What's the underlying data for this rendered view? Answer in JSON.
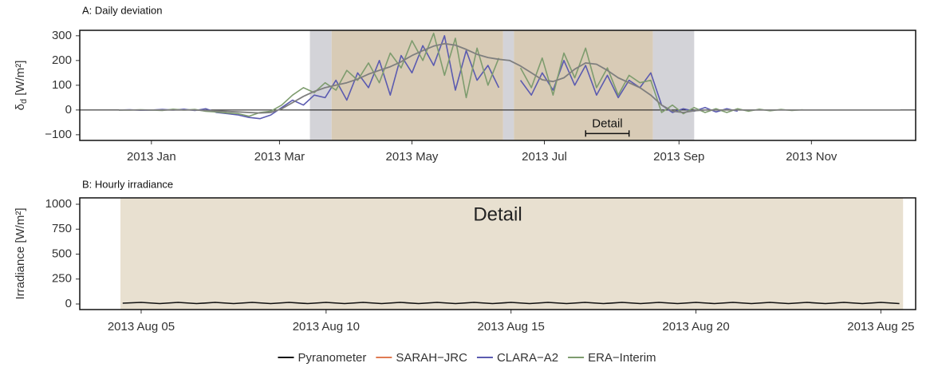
{
  "chart_data": [
    {
      "type": "line",
      "title": "A: Daily deviation",
      "y_label": {
        "symbol": "δ",
        "subscript": "d",
        "unit": " [W/m²]"
      },
      "xlim": [
        -33,
        352
      ],
      "ylim": [
        -123,
        322
      ],
      "xticks": [
        {
          "value": 0,
          "label": "2013 Jan"
        },
        {
          "value": 59,
          "label": "2013 Mar"
        },
        {
          "value": 120,
          "label": "2013 May"
        },
        {
          "value": 181,
          "label": "2013 Jul"
        },
        {
          "value": 243,
          "label": "2013 Sep"
        },
        {
          "value": 304,
          "label": "2013 Nov"
        }
      ],
      "yticks": [
        {
          "value": -100,
          "label": "−100"
        },
        0,
        100,
        200,
        300
      ],
      "reference_line": 0,
      "spans": [
        {
          "start": 73,
          "end": 83,
          "color": "#d3d3d8"
        },
        {
          "start": 83,
          "end": 162,
          "color": "#d8cbb6"
        },
        {
          "start": 162,
          "end": 167,
          "color": "#d3d3d8"
        },
        {
          "start": 167,
          "end": 231,
          "color": "#d8cbb6"
        },
        {
          "start": 231,
          "end": 250,
          "color": "#d3d3d8"
        }
      ],
      "bracket": {
        "label": "Detail",
        "start": 200,
        "end": 220,
        "y": -95
      },
      "x": [
        -15,
        -10,
        -5,
        0,
        5,
        10,
        15,
        20,
        25,
        30,
        35,
        40,
        45,
        50,
        55,
        60,
        65,
        70,
        75,
        80,
        85,
        90,
        95,
        100,
        105,
        110,
        115,
        120,
        125,
        130,
        135,
        140,
        145,
        150,
        155,
        160,
        165,
        170,
        175,
        180,
        185,
        190,
        195,
        200,
        205,
        210,
        215,
        220,
        225,
        230,
        235,
        240,
        245,
        250,
        255,
        260,
        265,
        270,
        275,
        280,
        285,
        290,
        295,
        300,
        305,
        310,
        315,
        320,
        325,
        330,
        335,
        340,
        345
      ],
      "series": [
        {
          "name": "CLARA−A2",
          "color": "#5b5bb0",
          "values": [
            0,
            1,
            -1,
            0,
            2,
            0,
            3,
            -2,
            5,
            -10,
            -15,
            -20,
            -30,
            -35,
            -20,
            10,
            40,
            20,
            60,
            50,
            120,
            40,
            150,
            90,
            200,
            60,
            220,
            150,
            260,
            180,
            300,
            80,
            240,
            120,
            180,
            90,
            null,
            120,
            60,
            150,
            80,
            200,
            100,
            180,
            60,
            140,
            50,
            120,
            90,
            150,
            20,
            -10,
            5,
            -5,
            10,
            -8,
            5,
            -5,
            null,
            null,
            null,
            null,
            null,
            null,
            null,
            null,
            null,
            null,
            null,
            null,
            null,
            null,
            null
          ]
        },
        {
          "name": "ERA−Interim",
          "color": "#7e9c6e",
          "values": [
            0,
            0,
            1,
            0,
            -2,
            3,
            0,
            2,
            -5,
            -8,
            -12,
            -15,
            -25,
            -10,
            -5,
            20,
            60,
            90,
            70,
            110,
            80,
            160,
            120,
            190,
            110,
            230,
            170,
            280,
            200,
            310,
            140,
            290,
            50,
            250,
            100,
            210,
            null,
            170,
            90,
            210,
            60,
            230,
            130,
            250,
            90,
            170,
            60,
            140,
            110,
            120,
            -10,
            20,
            -15,
            10,
            -10,
            5,
            -10,
            5,
            -5,
            3,
            -3,
            2,
            -2,
            1,
            null,
            null,
            null,
            null,
            null,
            null,
            null,
            null,
            null
          ]
        }
      ],
      "smooth": {
        "color": "#7f7f7f",
        "values": [
          0,
          0,
          0,
          0,
          0,
          0,
          0,
          0,
          -2,
          -4,
          -6,
          -8,
          -10,
          -12,
          -10,
          5,
          30,
          55,
          75,
          90,
          100,
          110,
          125,
          145,
          160,
          175,
          195,
          220,
          240,
          258,
          268,
          262,
          245,
          225,
          212,
          205,
          200,
          178,
          150,
          122,
          115,
          130,
          165,
          190,
          185,
          160,
          130,
          110,
          90,
          60,
          20,
          -5,
          -10,
          -3,
          0,
          0,
          0,
          0,
          0,
          0,
          0,
          0,
          0,
          0,
          0,
          0,
          0,
          0,
          0,
          0,
          0,
          0,
          0
        ]
      }
    },
    {
      "type": "line",
      "title": "B: Hourly irradiance",
      "y_label": "Irradiance [W/m²]",
      "annotation": "Detail",
      "xlim": [
        -1.66,
        20.94
      ],
      "ylim": [
        -56,
        1064
      ],
      "xticks": [
        {
          "value": 0,
          "label": "2013 Aug 05"
        },
        {
          "value": 5,
          "label": "2013 Aug 10"
        },
        {
          "value": 10,
          "label": "2013 Aug 15"
        },
        {
          "value": 15,
          "label": "2013 Aug 20"
        },
        {
          "value": 20,
          "label": "2013 Aug 25"
        }
      ],
      "yticks": [
        0,
        250,
        500,
        750,
        1000
      ],
      "spans": [
        {
          "start": -0.56,
          "end": 20.6,
          "color": "#e8e0d0"
        }
      ],
      "x": [
        -0.5,
        0,
        0.5,
        1,
        1.5,
        2,
        2.5,
        3,
        3.5,
        4,
        4.5,
        5,
        5.5,
        6,
        6.5,
        7,
        7.5,
        8,
        8.5,
        9,
        9.5,
        10,
        10.5,
        11,
        11.5,
        12,
        12.5,
        13,
        13.5,
        14,
        14.5,
        15,
        15.5,
        16,
        16.5,
        17,
        17.5,
        18,
        18.5,
        19,
        19.5,
        20,
        20.5
      ],
      "series": [
        {
          "name": "Pyranometer",
          "color": "#111111",
          "values": [
            8,
            16,
            4,
            16,
            4,
            16,
            4,
            16,
            4,
            16,
            4,
            16,
            4,
            16,
            4,
            16,
            4,
            16,
            4,
            16,
            4,
            16,
            4,
            16,
            4,
            16,
            4,
            16,
            4,
            16,
            4,
            16,
            4,
            16,
            4,
            16,
            4,
            16,
            4,
            16,
            4,
            16,
            4
          ]
        }
      ]
    }
  ],
  "legend": [
    {
      "name": "Pyranometer",
      "color": "#111111"
    },
    {
      "name": "SARAH−JRC",
      "color": "#e07b53"
    },
    {
      "name": "CLARA−A2",
      "color": "#5b5bb0"
    },
    {
      "name": "ERA−Interim",
      "color": "#7e9c6e"
    }
  ]
}
